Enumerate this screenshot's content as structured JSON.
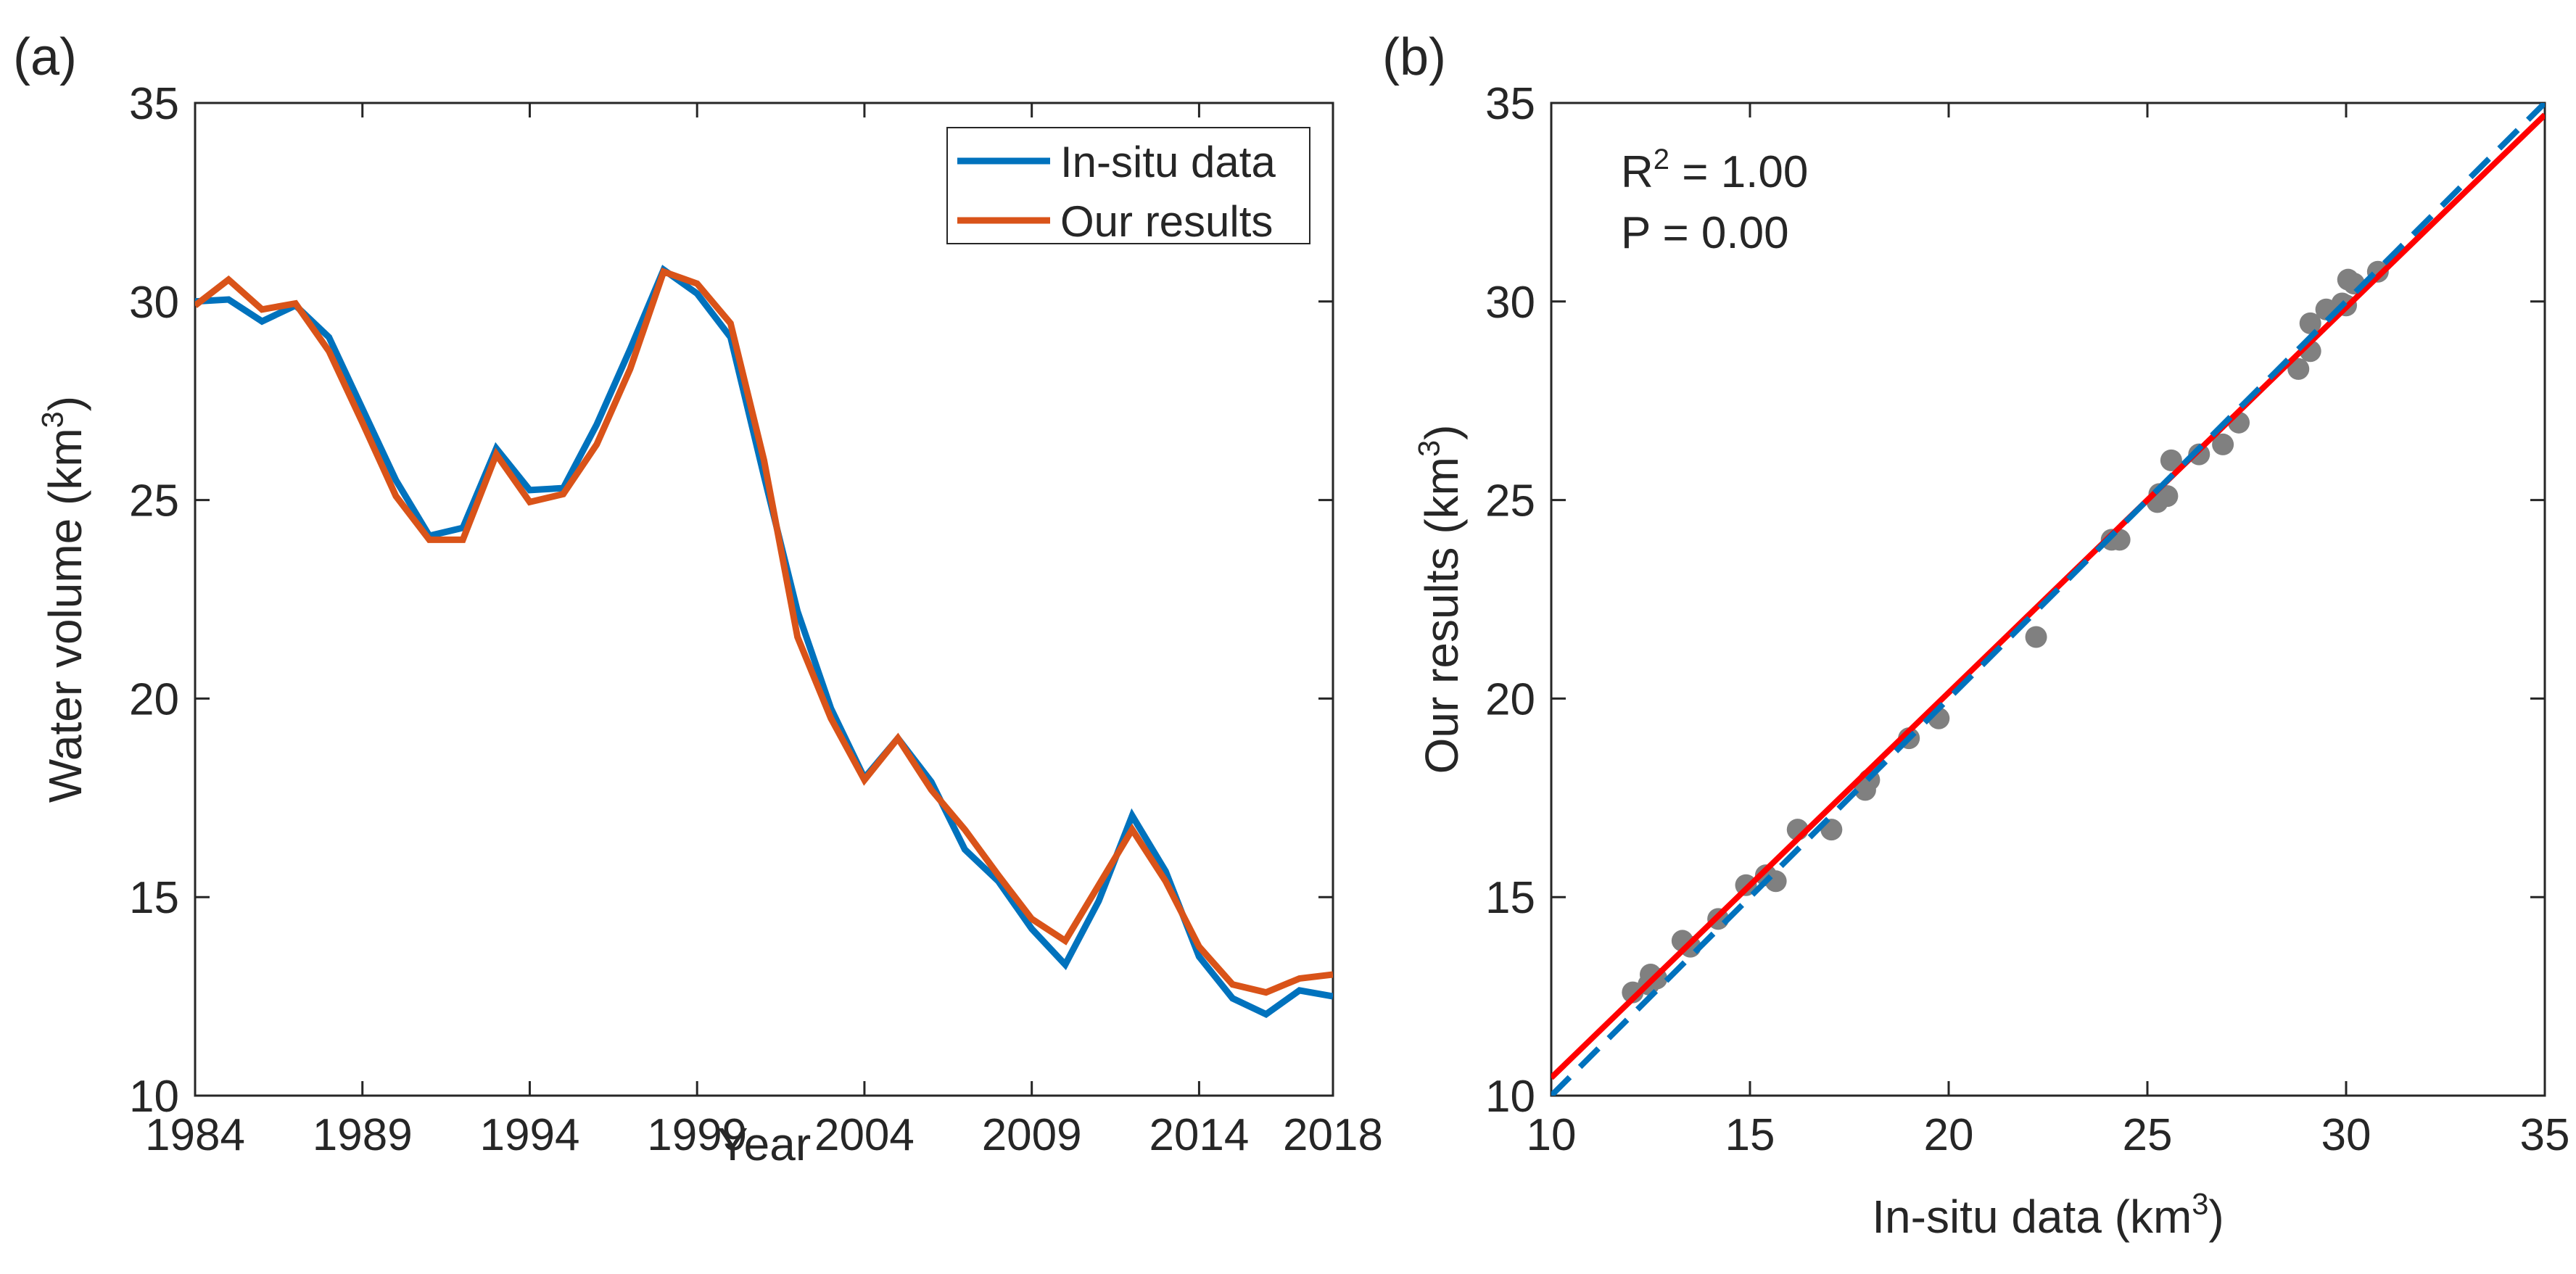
{
  "chart_data": [
    {
      "type": "line",
      "panel_label": "(a)",
      "xlabel": "Year",
      "ylabel": {
        "text": "Water volume (km",
        "sup": "3",
        "end": ")"
      },
      "xlim": [
        1984,
        2018
      ],
      "ylim": [
        10,
        35
      ],
      "xticks": [
        "1984",
        "1989",
        "1994",
        "1999",
        "2004",
        "2009",
        "2014",
        "2018"
      ],
      "xtick_values": [
        1984,
        1989,
        1994,
        1999,
        2004,
        2009,
        2014,
        2018
      ],
      "yticks": [
        "10",
        "15",
        "20",
        "25",
        "30",
        "35"
      ],
      "ytick_values": [
        10,
        15,
        20,
        25,
        30,
        35
      ],
      "legend_position": "top-right",
      "x": [
        1984,
        1985,
        1986,
        1987,
        1988,
        1989,
        1990,
        1991,
        1992,
        1993,
        1994,
        1995,
        1996,
        1997,
        1998,
        1999,
        2000,
        2001,
        2002,
        2003,
        2004,
        2005,
        2006,
        2007,
        2008,
        2009,
        2010,
        2011,
        2012,
        2013,
        2014,
        2015,
        2016,
        2017,
        2018
      ],
      "series": [
        {
          "name": "In-situ data",
          "color": "#0072BD",
          "values": [
            30.0,
            30.05,
            29.5,
            29.9,
            29.1,
            27.3,
            25.5,
            24.1,
            24.3,
            26.3,
            25.25,
            25.3,
            26.9,
            28.8,
            30.8,
            30.2,
            29.1,
            25.6,
            22.2,
            19.75,
            18.0,
            19.0,
            17.9,
            16.2,
            15.4,
            14.2,
            13.3,
            14.9,
            17.05,
            15.65,
            13.5,
            12.45,
            12.05,
            12.65,
            12.5
          ]
        },
        {
          "name": "Our results",
          "color": "#D95319",
          "values": [
            29.9,
            30.55,
            29.8,
            29.95,
            28.75,
            26.95,
            25.1,
            24.0,
            24.0,
            26.15,
            24.95,
            25.15,
            26.4,
            28.3,
            30.75,
            30.45,
            29.45,
            26.0,
            21.55,
            19.5,
            17.95,
            19.0,
            17.7,
            16.7,
            15.55,
            14.45,
            13.9,
            15.3,
            16.7,
            15.4,
            13.75,
            12.8,
            12.6,
            12.95,
            13.05
          ]
        }
      ]
    },
    {
      "type": "scatter",
      "panel_label": "(b)",
      "xlabel": {
        "text": "In-situ data (km",
        "sup": "3",
        "end": ")"
      },
      "ylabel": {
        "text": "Our results (km",
        "sup": "3",
        "end": ")"
      },
      "xlim": [
        10,
        35
      ],
      "ylim": [
        10,
        35
      ],
      "xticks": [
        "10",
        "15",
        "20",
        "25",
        "30",
        "35"
      ],
      "xtick_values": [
        10,
        15,
        20,
        25,
        30,
        35
      ],
      "yticks": [
        "10",
        "15",
        "20",
        "25",
        "30",
        "35"
      ],
      "ytick_values": [
        10,
        15,
        20,
        25,
        30,
        35
      ],
      "annotations": {
        "r2_prefix": "R",
        "r2_sup": "2",
        "r2_value": " = 1.00",
        "p": "P = 0.00"
      },
      "point_color": "#808080",
      "points_x": [
        30.0,
        30.05,
        29.5,
        29.9,
        29.1,
        27.3,
        25.5,
        24.1,
        24.3,
        26.3,
        25.25,
        25.3,
        26.9,
        28.8,
        30.8,
        30.2,
        29.1,
        25.6,
        22.2,
        19.75,
        18.0,
        19.0,
        17.9,
        16.2,
        15.4,
        14.2,
        13.3,
        14.9,
        17.05,
        15.65,
        13.5,
        12.45,
        12.05,
        12.65,
        12.5
      ],
      "points_y": [
        29.9,
        30.55,
        29.8,
        29.95,
        28.75,
        26.95,
        25.1,
        24.0,
        24.0,
        26.15,
        24.95,
        25.15,
        26.4,
        28.3,
        30.75,
        30.45,
        29.45,
        26.0,
        21.55,
        19.5,
        17.95,
        19.0,
        17.7,
        16.7,
        15.55,
        14.45,
        13.9,
        15.3,
        16.7,
        15.4,
        13.75,
        12.8,
        12.6,
        12.95,
        13.05
      ],
      "fit_line": {
        "name": "regression fit",
        "color": "#FF0000",
        "slope": 0.97,
        "intercept": 0.75
      },
      "reference_line": {
        "name": "1:1 line",
        "color": "#0072BD",
        "slope": 1,
        "intercept": 0
      }
    }
  ]
}
